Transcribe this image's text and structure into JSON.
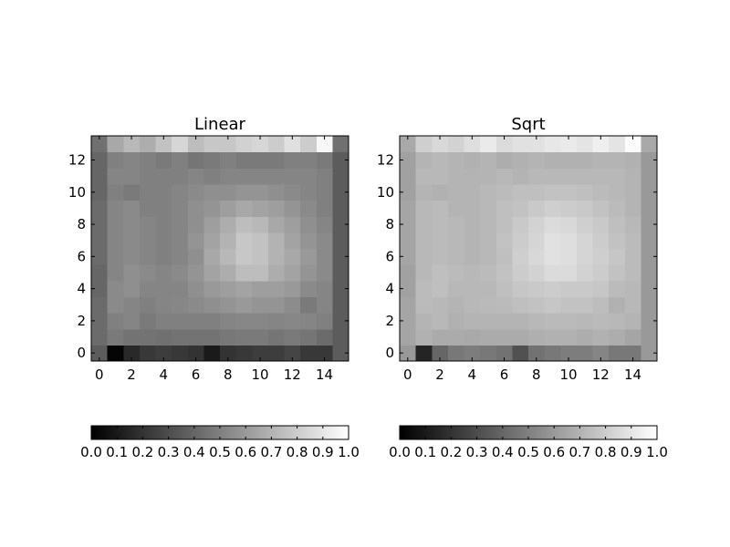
{
  "chart_data": [
    {
      "type": "heatmap",
      "title": "Linear",
      "colormap": "gray",
      "scale": "linear",
      "vmin": 0.0,
      "vmax": 1.0,
      "x_range": [
        -0.5,
        15.5
      ],
      "y_range": [
        -0.5,
        13.5
      ],
      "x_ticks": [
        0,
        2,
        4,
        6,
        8,
        10,
        12,
        14
      ],
      "y_ticks": [
        0,
        2,
        4,
        6,
        8,
        10,
        12
      ],
      "x_tick_labels": [
        "0",
        "2",
        "4",
        "6",
        "8",
        "10",
        "12",
        "14"
      ],
      "y_tick_labels": [
        "0",
        "2",
        "4",
        "6",
        "8",
        "10",
        "12"
      ],
      "colorbar_ticks": [
        "0.0",
        "0.1",
        "0.2",
        "0.3",
        "0.4",
        "0.5",
        "0.6",
        "0.7",
        "0.8",
        "0.9",
        "1.0"
      ],
      "z": [
        [
          0.36,
          0.02,
          0.16,
          0.22,
          0.24,
          0.22,
          0.2,
          0.1,
          0.2,
          0.22,
          0.24,
          0.24,
          0.27,
          0.22,
          0.22,
          0.36
        ],
        [
          0.42,
          0.48,
          0.45,
          0.45,
          0.44,
          0.45,
          0.45,
          0.45,
          0.47,
          0.48,
          0.48,
          0.46,
          0.48,
          0.46,
          0.42,
          0.36
        ],
        [
          0.42,
          0.5,
          0.52,
          0.48,
          0.5,
          0.5,
          0.5,
          0.5,
          0.52,
          0.53,
          0.53,
          0.52,
          0.53,
          0.52,
          0.5,
          0.36
        ],
        [
          0.42,
          0.54,
          0.52,
          0.5,
          0.52,
          0.53,
          0.54,
          0.56,
          0.58,
          0.6,
          0.58,
          0.58,
          0.55,
          0.48,
          0.52,
          0.36
        ],
        [
          0.4,
          0.54,
          0.56,
          0.52,
          0.52,
          0.52,
          0.56,
          0.6,
          0.62,
          0.64,
          0.62,
          0.62,
          0.6,
          0.54,
          0.52,
          0.36
        ],
        [
          0.4,
          0.52,
          0.56,
          0.54,
          0.52,
          0.54,
          0.58,
          0.64,
          0.68,
          0.74,
          0.74,
          0.68,
          0.64,
          0.58,
          0.54,
          0.36
        ],
        [
          0.42,
          0.52,
          0.54,
          0.52,
          0.5,
          0.52,
          0.56,
          0.66,
          0.72,
          0.78,
          0.76,
          0.7,
          0.66,
          0.6,
          0.54,
          0.36
        ],
        [
          0.42,
          0.52,
          0.54,
          0.52,
          0.5,
          0.52,
          0.58,
          0.64,
          0.7,
          0.78,
          0.76,
          0.7,
          0.64,
          0.58,
          0.54,
          0.36
        ],
        [
          0.42,
          0.52,
          0.54,
          0.52,
          0.5,
          0.52,
          0.56,
          0.62,
          0.68,
          0.74,
          0.72,
          0.66,
          0.62,
          0.56,
          0.52,
          0.36
        ],
        [
          0.42,
          0.52,
          0.54,
          0.5,
          0.5,
          0.52,
          0.56,
          0.58,
          0.62,
          0.66,
          0.64,
          0.62,
          0.58,
          0.54,
          0.5,
          0.36
        ],
        [
          0.4,
          0.5,
          0.48,
          0.5,
          0.5,
          0.52,
          0.54,
          0.56,
          0.56,
          0.58,
          0.58,
          0.56,
          0.54,
          0.52,
          0.5,
          0.36
        ],
        [
          0.4,
          0.52,
          0.52,
          0.5,
          0.5,
          0.5,
          0.52,
          0.5,
          0.52,
          0.52,
          0.52,
          0.52,
          0.52,
          0.52,
          0.5,
          0.36
        ],
        [
          0.4,
          0.5,
          0.52,
          0.5,
          0.48,
          0.5,
          0.46,
          0.48,
          0.5,
          0.48,
          0.48,
          0.48,
          0.5,
          0.5,
          0.48,
          0.36
        ],
        [
          0.44,
          0.66,
          0.72,
          0.68,
          0.76,
          0.84,
          0.74,
          0.78,
          0.78,
          0.82,
          0.84,
          0.8,
          0.88,
          0.8,
          0.97,
          0.44
        ]
      ]
    },
    {
      "type": "heatmap",
      "title": "Sqrt",
      "colormap": "gray",
      "scale": "sqrt",
      "vmin": 0.0,
      "vmax": 1.0,
      "x_range": [
        -0.5,
        15.5
      ],
      "y_range": [
        -0.5,
        13.5
      ],
      "x_ticks": [
        0,
        2,
        4,
        6,
        8,
        10,
        12,
        14
      ],
      "y_ticks": [
        0,
        2,
        4,
        6,
        8,
        10,
        12
      ],
      "x_tick_labels": [
        "0",
        "2",
        "4",
        "6",
        "8",
        "10",
        "12",
        "14"
      ],
      "y_tick_labels": [
        "0",
        "2",
        "4",
        "6",
        "8",
        "10",
        "12"
      ],
      "colorbar_ticks": [
        "0.0",
        "0.1",
        "0.2",
        "0.3",
        "0.4",
        "0.5",
        "0.6",
        "0.7",
        "0.8",
        "0.9",
        "1.0"
      ]
    }
  ]
}
